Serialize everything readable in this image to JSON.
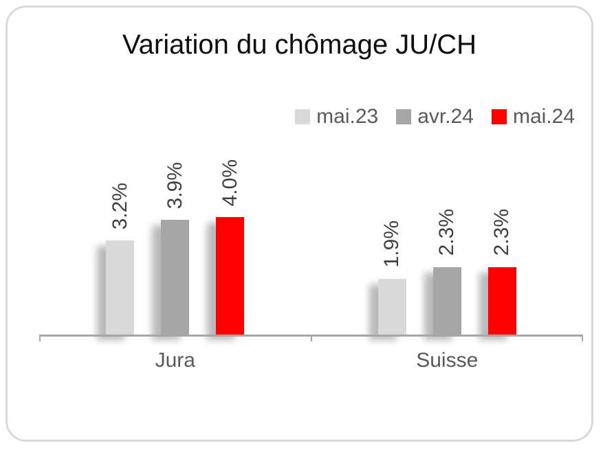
{
  "chart_data": {
    "type": "bar",
    "title": "Variation du chômage JU/CH",
    "categories": [
      "Jura",
      "Suisse"
    ],
    "series": [
      {
        "name": "mai.23",
        "color": "#d9d9d9",
        "values": [
          3.2,
          1.9
        ],
        "labels": [
          "3.2%",
          "1.9%"
        ]
      },
      {
        "name": "avr.24",
        "color": "#a6a6a6",
        "values": [
          3.9,
          2.3
        ],
        "labels": [
          "3.9%",
          "2.3%"
        ]
      },
      {
        "name": "mai.24",
        "color": "#ff0000",
        "values": [
          4.0,
          2.3
        ],
        "labels": [
          "4.0%",
          "2.3%"
        ]
      }
    ],
    "xlabel": "",
    "ylabel": "",
    "ylim": [
      0,
      4.4
    ],
    "grid": false,
    "legend_position": "top-right",
    "data_label_rotation": 90
  },
  "colors": {
    "axis_line": "#a6a6a6",
    "title_text": "#0d0d0d",
    "data_label_text": "#404040",
    "category_text": "#595959",
    "legend_text": "#595959",
    "card_border": "#d9d9d9"
  }
}
